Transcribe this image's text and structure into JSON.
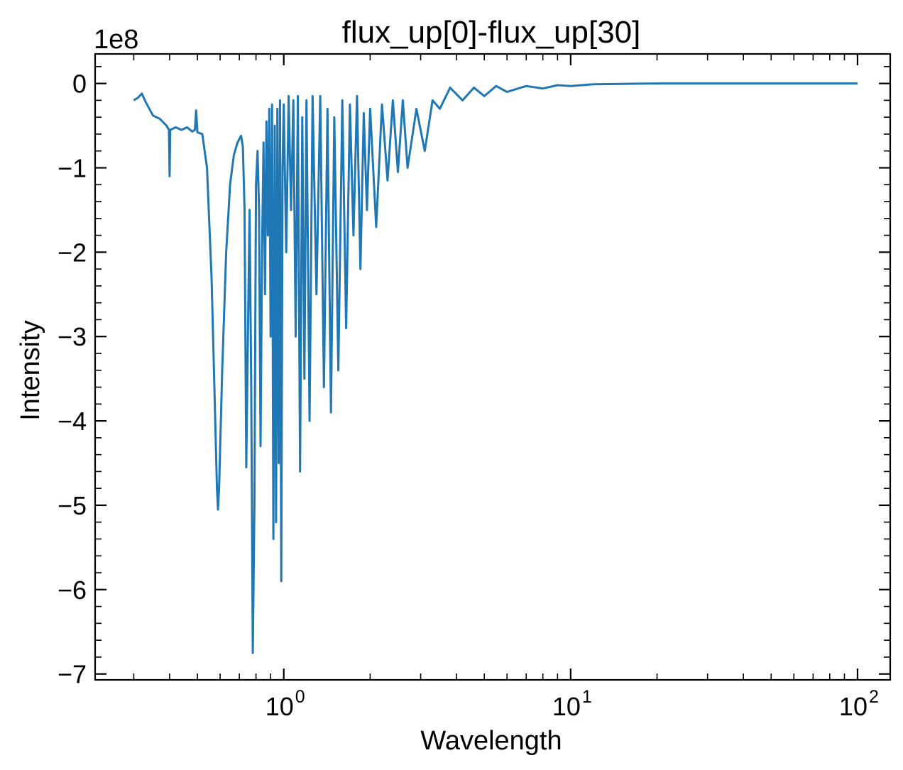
{
  "chart_data": {
    "type": "line",
    "title": "flux_up[0]-flux_up[30]",
    "xlabel": "Wavelength",
    "ylabel": "Intensity",
    "y_offset_label": "1e8",
    "x_scale": "log",
    "xlim": [
      0.22,
      130
    ],
    "ylim": [
      -7.07,
      0.35
    ],
    "x_ticks": [
      {
        "value": 1,
        "base": "10",
        "exp": "0"
      },
      {
        "value": 10,
        "base": "10",
        "exp": "1"
      },
      {
        "value": 100,
        "base": "10",
        "exp": "2"
      }
    ],
    "y_ticks": [
      {
        "value": 0,
        "label": "0"
      },
      {
        "value": -1,
        "label": "−1"
      },
      {
        "value": -2,
        "label": "−2"
      },
      {
        "value": -3,
        "label": "−3"
      },
      {
        "value": -4,
        "label": "−4"
      },
      {
        "value": -5,
        "label": "−5"
      },
      {
        "value": -6,
        "label": "−6"
      },
      {
        "value": -7,
        "label": "−7"
      }
    ],
    "grid": false,
    "series": [
      {
        "color": "#1f77b4",
        "points": [
          [
            0.3,
            -0.2
          ],
          [
            0.31,
            -0.17
          ],
          [
            0.32,
            -0.12
          ],
          [
            0.33,
            -0.22
          ],
          [
            0.34,
            -0.3
          ],
          [
            0.35,
            -0.38
          ],
          [
            0.37,
            -0.42
          ],
          [
            0.39,
            -0.5
          ],
          [
            0.398,
            -0.55
          ],
          [
            0.4,
            -1.1
          ],
          [
            0.402,
            -0.55
          ],
          [
            0.42,
            -0.52
          ],
          [
            0.44,
            -0.55
          ],
          [
            0.46,
            -0.52
          ],
          [
            0.48,
            -0.57
          ],
          [
            0.49,
            -0.55
          ],
          [
            0.495,
            -0.32
          ],
          [
            0.5,
            -0.58
          ],
          [
            0.52,
            -0.6
          ],
          [
            0.54,
            -1.0
          ],
          [
            0.56,
            -2.3
          ],
          [
            0.575,
            -3.8
          ],
          [
            0.585,
            -4.8
          ],
          [
            0.59,
            -5.05
          ],
          [
            0.595,
            -4.8
          ],
          [
            0.61,
            -3.4
          ],
          [
            0.63,
            -2.0
          ],
          [
            0.65,
            -1.2
          ],
          [
            0.67,
            -0.85
          ],
          [
            0.69,
            -0.7
          ],
          [
            0.71,
            -0.62
          ],
          [
            0.72,
            -0.75
          ],
          [
            0.73,
            -1.5
          ],
          [
            0.74,
            -4.55
          ],
          [
            0.75,
            -3.0
          ],
          [
            0.76,
            -1.5
          ],
          [
            0.77,
            -3.6
          ],
          [
            0.78,
            -6.75
          ],
          [
            0.79,
            -5.0
          ],
          [
            0.8,
            -1.2
          ],
          [
            0.81,
            -0.8
          ],
          [
            0.82,
            -1.5
          ],
          [
            0.83,
            -4.3
          ],
          [
            0.84,
            -2.0
          ],
          [
            0.85,
            -0.7
          ],
          [
            0.86,
            -2.5
          ],
          [
            0.87,
            -0.45
          ],
          [
            0.88,
            -1.8
          ],
          [
            0.89,
            -0.3
          ],
          [
            0.9,
            -3.0
          ],
          [
            0.91,
            -0.25
          ],
          [
            0.92,
            -5.4
          ],
          [
            0.93,
            -0.5
          ],
          [
            0.94,
            -5.2
          ],
          [
            0.95,
            -0.3
          ],
          [
            0.96,
            -4.5
          ],
          [
            0.97,
            -0.2
          ],
          [
            0.98,
            -5.9
          ],
          [
            0.99,
            -1.0
          ],
          [
            1.0,
            -0.25
          ],
          [
            1.02,
            -2.0
          ],
          [
            1.04,
            -0.15
          ],
          [
            1.06,
            -1.5
          ],
          [
            1.08,
            -0.2
          ],
          [
            1.1,
            -3.0
          ],
          [
            1.12,
            -0.15
          ],
          [
            1.14,
            -4.6
          ],
          [
            1.16,
            -0.4
          ],
          [
            1.18,
            -3.5
          ],
          [
            1.2,
            -0.2
          ],
          [
            1.23,
            -4.0
          ],
          [
            1.26,
            -0.15
          ],
          [
            1.3,
            -2.5
          ],
          [
            1.34,
            -0.15
          ],
          [
            1.38,
            -3.6
          ],
          [
            1.42,
            -0.3
          ],
          [
            1.46,
            -3.9
          ],
          [
            1.5,
            -0.4
          ],
          [
            1.55,
            -3.4
          ],
          [
            1.6,
            -0.2
          ],
          [
            1.65,
            -2.9
          ],
          [
            1.7,
            -0.25
          ],
          [
            1.75,
            -1.8
          ],
          [
            1.8,
            -0.15
          ],
          [
            1.85,
            -2.2
          ],
          [
            1.9,
            -0.35
          ],
          [
            1.95,
            -1.5
          ],
          [
            2.0,
            -0.3
          ],
          [
            2.1,
            -1.7
          ],
          [
            2.2,
            -0.25
          ],
          [
            2.3,
            -1.15
          ],
          [
            2.4,
            -0.2
          ],
          [
            2.5,
            -1.05
          ],
          [
            2.6,
            -0.2
          ],
          [
            2.7,
            -1.0
          ],
          [
            2.9,
            -0.3
          ],
          [
            3.1,
            -0.8
          ],
          [
            3.3,
            -0.2
          ],
          [
            3.5,
            -0.3
          ],
          [
            3.8,
            -0.05
          ],
          [
            4.2,
            -0.2
          ],
          [
            4.6,
            -0.05
          ],
          [
            5.0,
            -0.15
          ],
          [
            5.5,
            -0.03
          ],
          [
            6.0,
            -0.1
          ],
          [
            7.0,
            -0.03
          ],
          [
            8.0,
            -0.06
          ],
          [
            9.0,
            -0.02
          ],
          [
            10.0,
            -0.03
          ],
          [
            12.0,
            -0.01
          ],
          [
            15.0,
            -0.005
          ],
          [
            20.0,
            0.0
          ],
          [
            30.0,
            0.0
          ],
          [
            50.0,
            0.0
          ],
          [
            100.0,
            0.0
          ]
        ]
      }
    ]
  }
}
